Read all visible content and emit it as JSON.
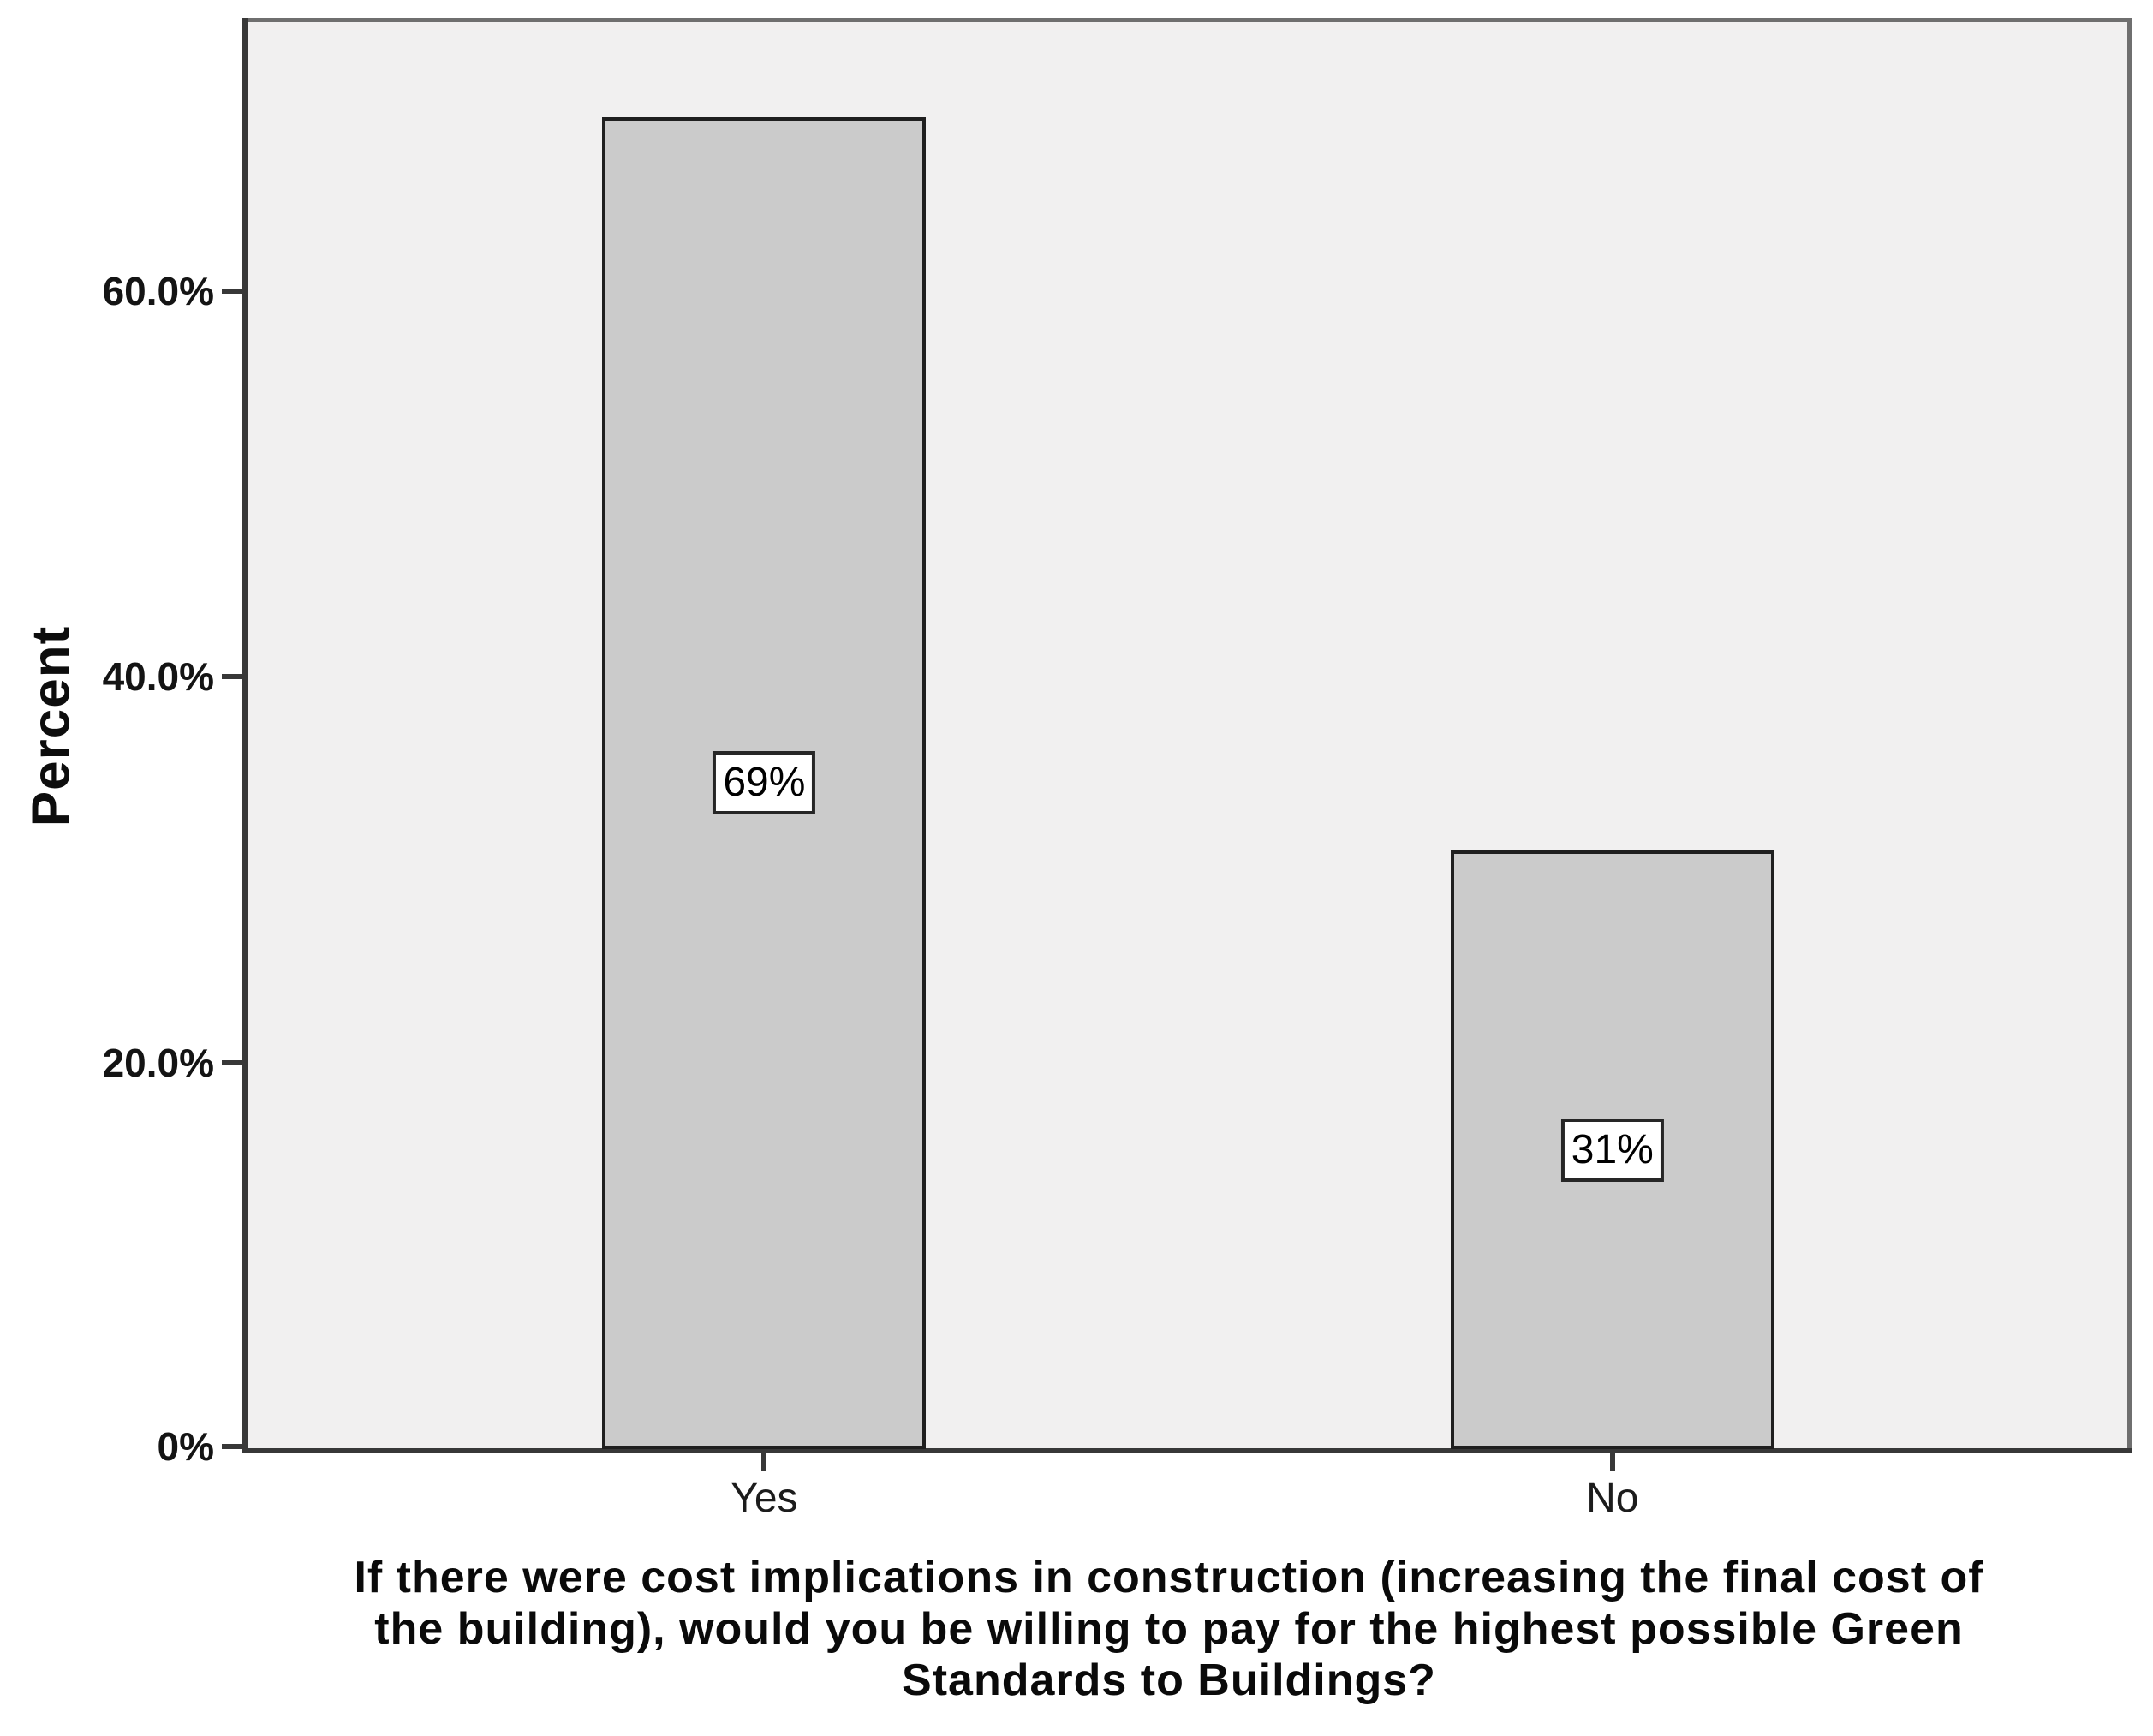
{
  "chart_data": {
    "type": "bar",
    "categories": [
      "Yes",
      "No"
    ],
    "values": [
      69,
      31
    ],
    "bar_labels": [
      "69%",
      "31%"
    ],
    "title": "If there were cost implications in construction (increasing the final cost of the building), would you be willing to pay for the highest possible Green Standards to Buildings?",
    "title_lines": [
      "If there were cost implications in construction (increasing the final cost of",
      "the building), would you be willing to pay for the highest possible Green",
      "Standards to Buildings?"
    ],
    "xlabel": "If there were cost implications in construction (increasing the final cost of the building), would you be willing to pay for the highest possible Green Standards to Buildings?",
    "ylabel": "Percent",
    "ylim": [
      0,
      74
    ],
    "yticks": [
      {
        "value": 0,
        "label": "0%"
      },
      {
        "value": 20,
        "label": "20.0%"
      },
      {
        "value": 40,
        "label": "40.0%"
      },
      {
        "value": 60,
        "label": "60.0%"
      }
    ],
    "grid": false,
    "legend_position": "none"
  },
  "colors": {
    "bar_fill": "#cbcbcb",
    "bar_border": "#1f1f1f",
    "panel_bg": "#f1f0f0",
    "panel_border_light": "#6f6f6f",
    "axis_dark": "#383838",
    "value_box_bg": "#ffffff",
    "value_box_border": "#262626",
    "text": "#111111"
  }
}
